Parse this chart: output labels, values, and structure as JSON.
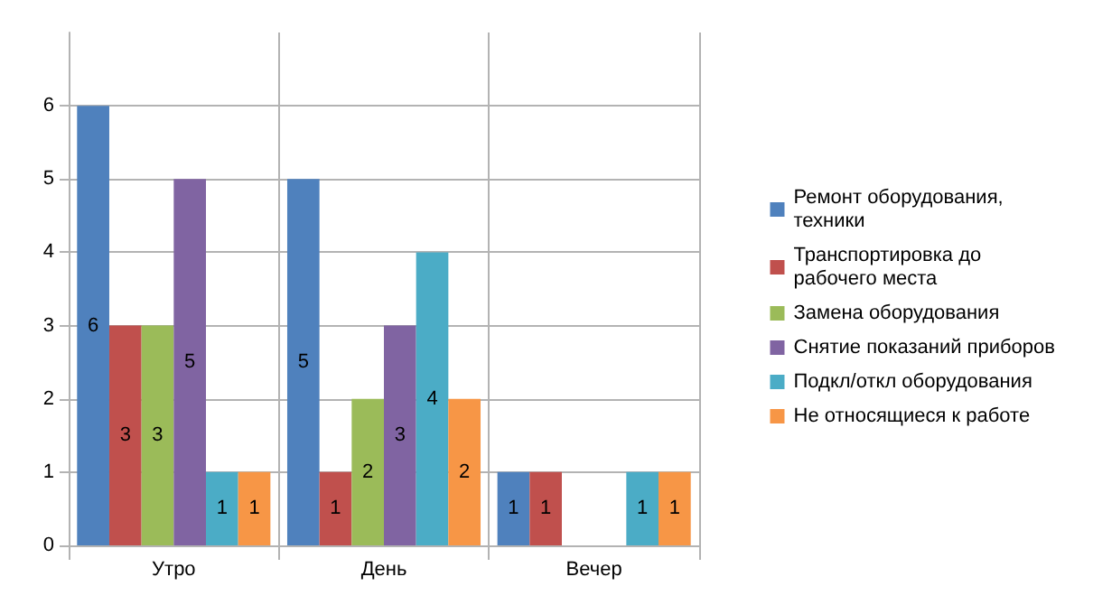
{
  "chart_data": {
    "type": "bar",
    "categories": [
      "Утро",
      "День",
      "Вечер"
    ],
    "series": [
      {
        "name": "Ремонт оборудования, техники",
        "color": "#4f81bd",
        "values": [
          6,
          5,
          1
        ]
      },
      {
        "name": "Транспортировка до рабочего места",
        "color": "#c0504d",
        "values": [
          3,
          1,
          1
        ]
      },
      {
        "name": "Замена оборудования",
        "color": "#9bbb59",
        "values": [
          3,
          2,
          null
        ]
      },
      {
        "name": "Снятие показаний приборов",
        "color": "#8064a2",
        "values": [
          5,
          3,
          null
        ]
      },
      {
        "name": "Подкл/откл оборудования",
        "color": "#4bacc6",
        "values": [
          1,
          4,
          1
        ]
      },
      {
        "name": "Не относящиеся к работе",
        "color": "#f79646",
        "values": [
          1,
          2,
          1
        ]
      }
    ],
    "ylim": [
      0,
      7
    ],
    "yticks": [
      0,
      1,
      2,
      3,
      4,
      5,
      6
    ],
    "grid": true,
    "legend": "right",
    "data_labels": true
  }
}
